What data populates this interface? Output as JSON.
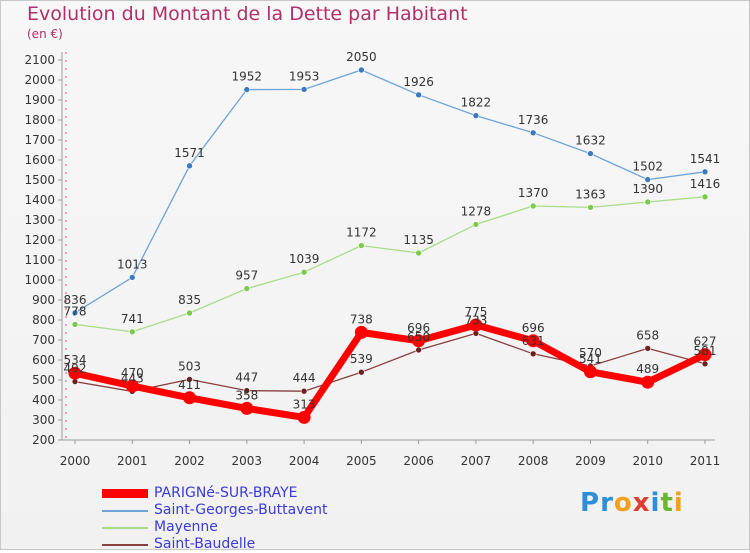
{
  "title": "Evolution du Montant de la Dette par Habitant",
  "unit_label": "(en €)",
  "logo": {
    "letters": [
      "P",
      "r",
      "o",
      "x",
      "i",
      "t",
      "i"
    ],
    "colors": [
      "#2f8ed8",
      "#2f8ed8",
      "#f0a21c",
      "#e33c2a",
      "#2f8ed8",
      "#6bb82e",
      "#f0a21c"
    ]
  },
  "chart_data": {
    "type": "line",
    "title": "Evolution du Montant de la Dette par Habitant",
    "ylabel": "(en €)",
    "xlabel": "",
    "x": [
      "2000",
      "2001",
      "2002",
      "2003",
      "2004",
      "2005",
      "2006",
      "2007",
      "2008",
      "2009",
      "2010",
      "2011"
    ],
    "ylim": [
      200,
      2100
    ],
    "yticks": [
      "200",
      "300",
      "400",
      "500",
      "600",
      "700",
      "800",
      "900",
      "1000",
      "1100",
      "1200",
      "1300",
      "1400",
      "1500",
      "1600",
      "1700",
      "1800",
      "1900",
      "2000",
      "2100"
    ],
    "grid": false,
    "legend_position": "bottom-left",
    "series": [
      {
        "name": "Saint-Georges-Buttavent",
        "color": "#6fa3d6",
        "marker": "#3a7bbf",
        "width": 1.3,
        "values": [
          836,
          1013,
          1571,
          1952,
          1953,
          2050,
          1926,
          1822,
          1736,
          1632,
          1502,
          1541
        ],
        "labels": [
          "836",
          "1013",
          "1571",
          "1952",
          "1953",
          "2050",
          "1926",
          "1822",
          "1736",
          "1632",
          "1502",
          "1541"
        ]
      },
      {
        "name": "Mayenne",
        "color": "#a9dc8a",
        "marker": "#7cc94b",
        "width": 1.3,
        "values": [
          778,
          741,
          835,
          957,
          1039,
          1172,
          1135,
          1278,
          1370,
          1363,
          1390,
          1416
        ],
        "labels": [
          "778",
          "741",
          "835",
          "957",
          "1039",
          "1172",
          "1135",
          "1278",
          "1370",
          "1363",
          "1390",
          "1416"
        ]
      },
      {
        "name": "Saint-Baudelle",
        "color": "#8a3f3f",
        "marker": "#6e1f1f",
        "width": 1.3,
        "values": [
          492,
          443,
          503,
          447,
          444,
          539,
          650,
          733,
          631,
          570,
          658,
          581
        ],
        "labels": [
          "492",
          "443",
          "503",
          "447",
          "444",
          "539",
          "650",
          "733",
          "631",
          "570",
          "658",
          "581"
        ]
      },
      {
        "name": "PARIGNé-SUR-BRAYE",
        "color": "#ff0000",
        "marker": "#ff0000",
        "width": 7,
        "values": [
          534,
          470,
          411,
          358,
          313,
          738,
          696,
          775,
          696,
          541,
          489,
          627
        ],
        "labels": [
          "534",
          "470",
          "411",
          "358",
          "313",
          "738",
          "696",
          "775",
          "696",
          "541",
          "489",
          "627"
        ]
      }
    ],
    "legend_order": [
      "PARIGNé-SUR-BRAYE",
      "Saint-Georges-Buttavent",
      "Mayenne",
      "Saint-Baudelle"
    ]
  }
}
